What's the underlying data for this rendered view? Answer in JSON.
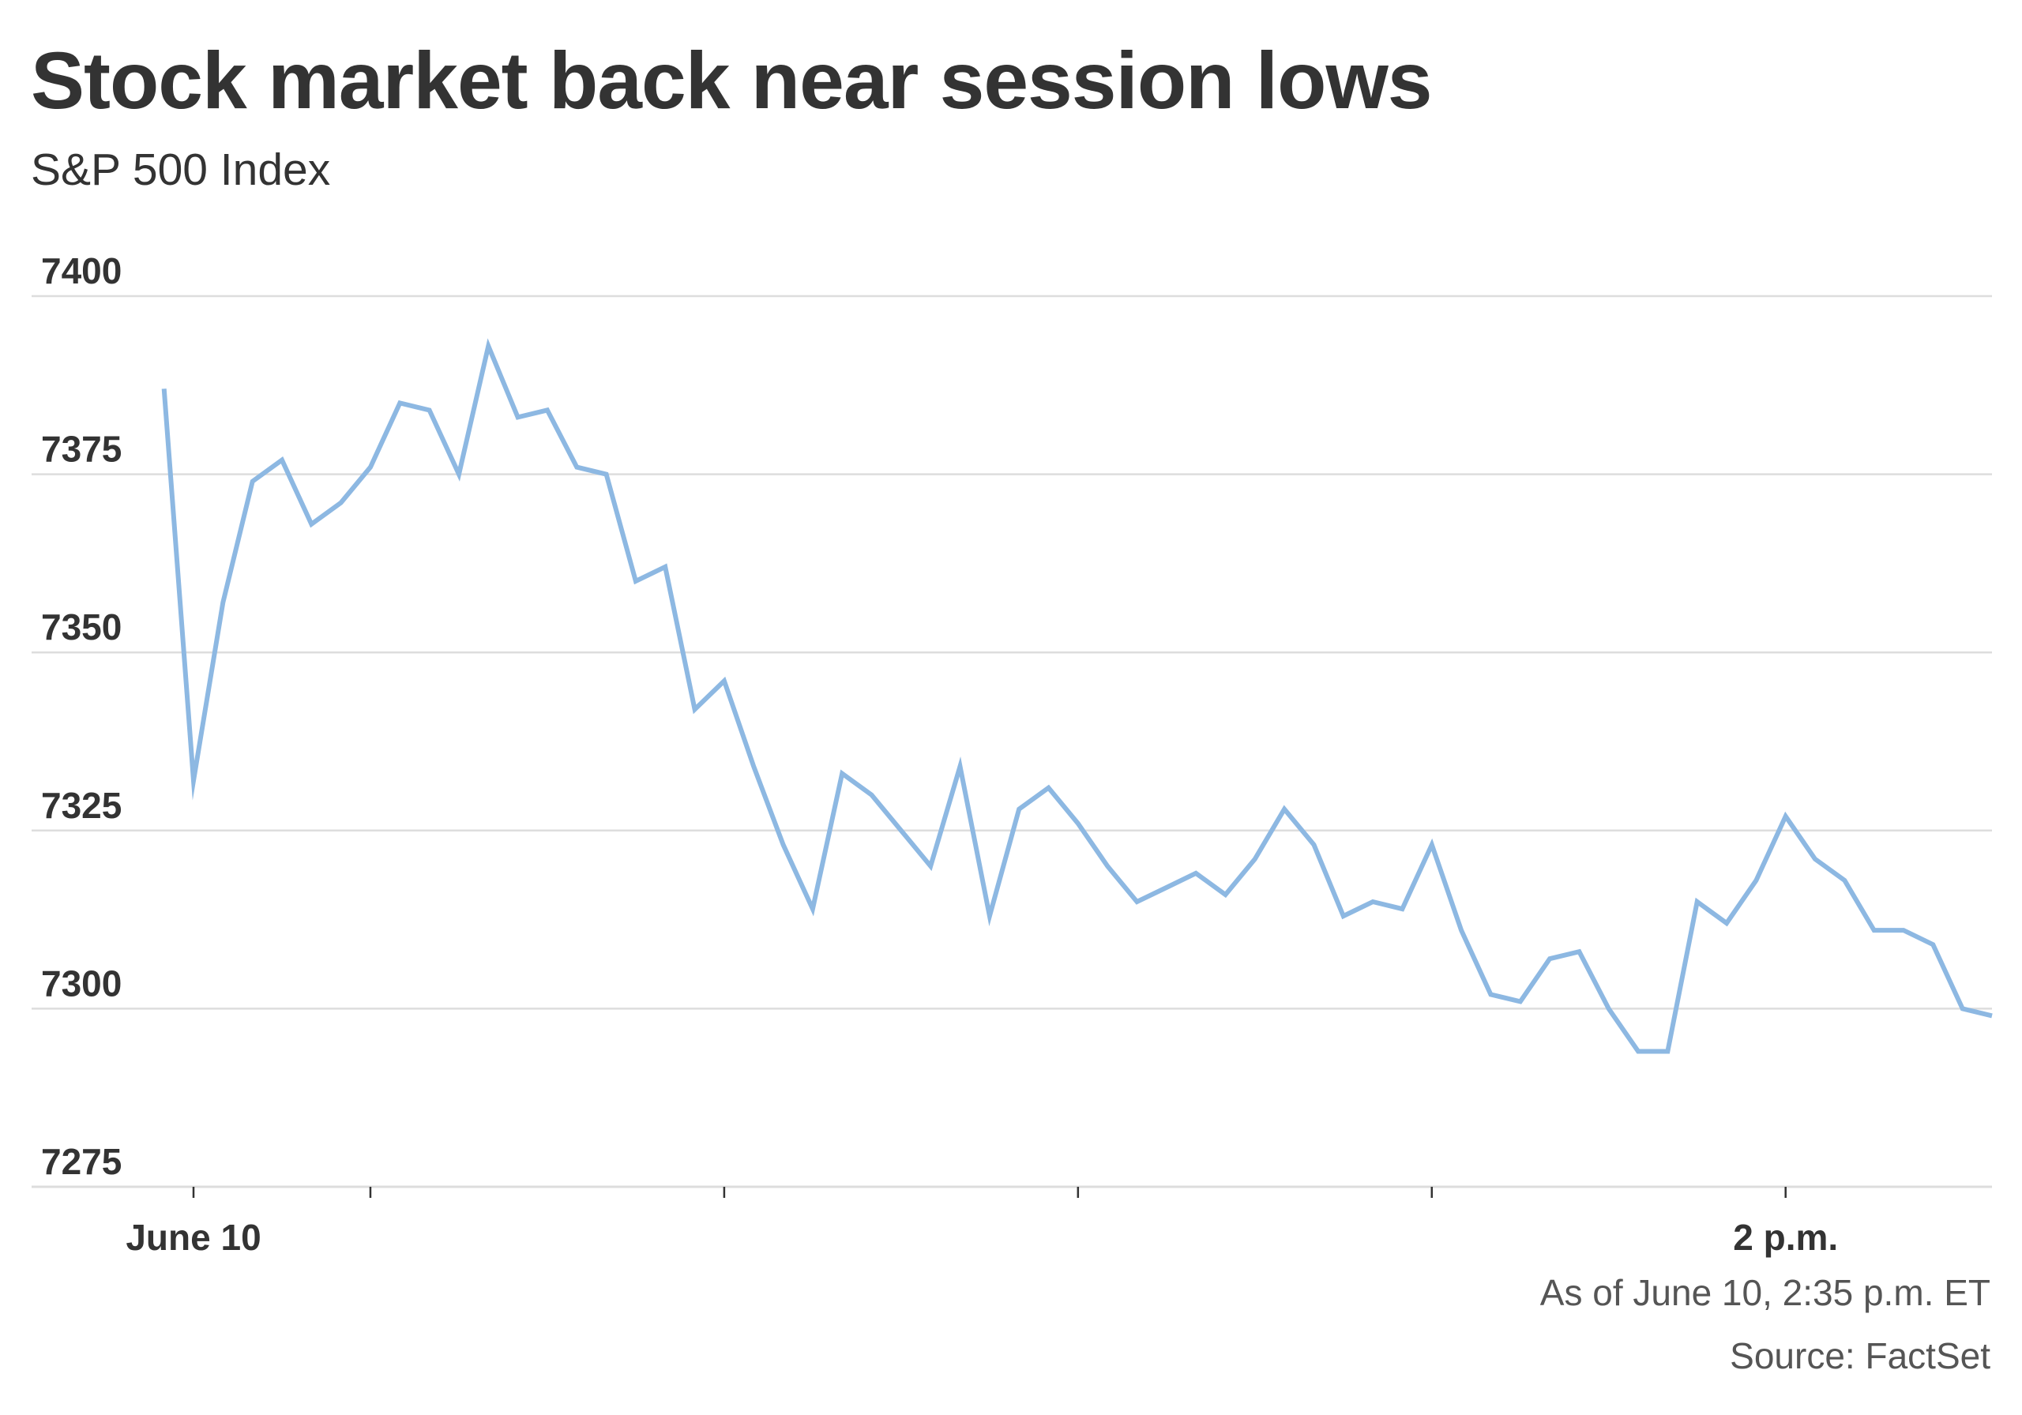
{
  "header": {
    "title": "Stock market back near session lows",
    "subtitle": "S&P 500 Index"
  },
  "footer": {
    "as_of": "As of June 10, 2:35 p.m. ET",
    "source": "Source: FactSet"
  },
  "colors": {
    "line": "#8db8e2",
    "grid": "#dddddd",
    "text": "#333333",
    "muted": "#555555"
  },
  "chart_data": {
    "type": "line",
    "title": "Stock market back near session lows",
    "subtitle": "S&P 500 Index",
    "xlabel": "",
    "ylabel": "",
    "ylim": [
      7275,
      7400
    ],
    "yticks": [
      7400,
      7375,
      7350,
      7325,
      7300,
      7275
    ],
    "xlim": [
      "9:30",
      "14:35"
    ],
    "x_tick_positions": [
      "9:30",
      "10:00",
      "11:00",
      "12:00",
      "13:00",
      "14:00"
    ],
    "x_tick_labels": [
      {
        "x": "9:30",
        "label": "June 10"
      },
      {
        "x": "14:00",
        "label": "2 p.m."
      }
    ],
    "grid": true,
    "legend": "none",
    "series": [
      {
        "x": [
          "9:25",
          "9:30",
          "9:35",
          "9:40",
          "9:45",
          "9:50",
          "9:55",
          "10:00",
          "10:05",
          "10:10",
          "10:15",
          "10:20",
          "10:25",
          "10:30",
          "10:35",
          "10:40",
          "10:45",
          "10:50",
          "10:55",
          "11:00",
          "11:05",
          "11:10",
          "11:15",
          "11:20",
          "11:25",
          "11:30",
          "11:35",
          "11:40",
          "11:45",
          "11:50",
          "11:55",
          "12:00",
          "12:05",
          "12:10",
          "12:15",
          "12:20",
          "12:25",
          "12:30",
          "12:35",
          "12:40",
          "12:45",
          "12:50",
          "12:55",
          "13:00",
          "13:05",
          "13:10",
          "13:15",
          "13:20",
          "13:25",
          "13:30",
          "13:35",
          "13:40",
          "13:45",
          "13:50",
          "13:55",
          "14:00",
          "14:05",
          "14:10",
          "14:15",
          "14:20",
          "14:25",
          "14:30",
          "14:35"
        ],
        "values": [
          7387,
          7332,
          7357,
          7374,
          7377,
          7368,
          7371,
          7376,
          7385,
          7384,
          7375,
          7393,
          7383,
          7384,
          7376,
          7375,
          7360,
          7362,
          7342,
          7346,
          7334,
          7323,
          7314,
          7333,
          7330,
          7325,
          7320,
          7334,
          7313,
          7328,
          7331,
          7326,
          7320,
          7315,
          7317,
          7319,
          7316,
          7321,
          7328,
          7323,
          7313,
          7315,
          7314,
          7323,
          7311,
          7302,
          7301,
          7307,
          7308,
          7300,
          7294,
          7294,
          7315,
          7312,
          7318,
          7327,
          7321,
          7318,
          7311,
          7311,
          7309,
          7300,
          7299
        ]
      }
    ]
  }
}
